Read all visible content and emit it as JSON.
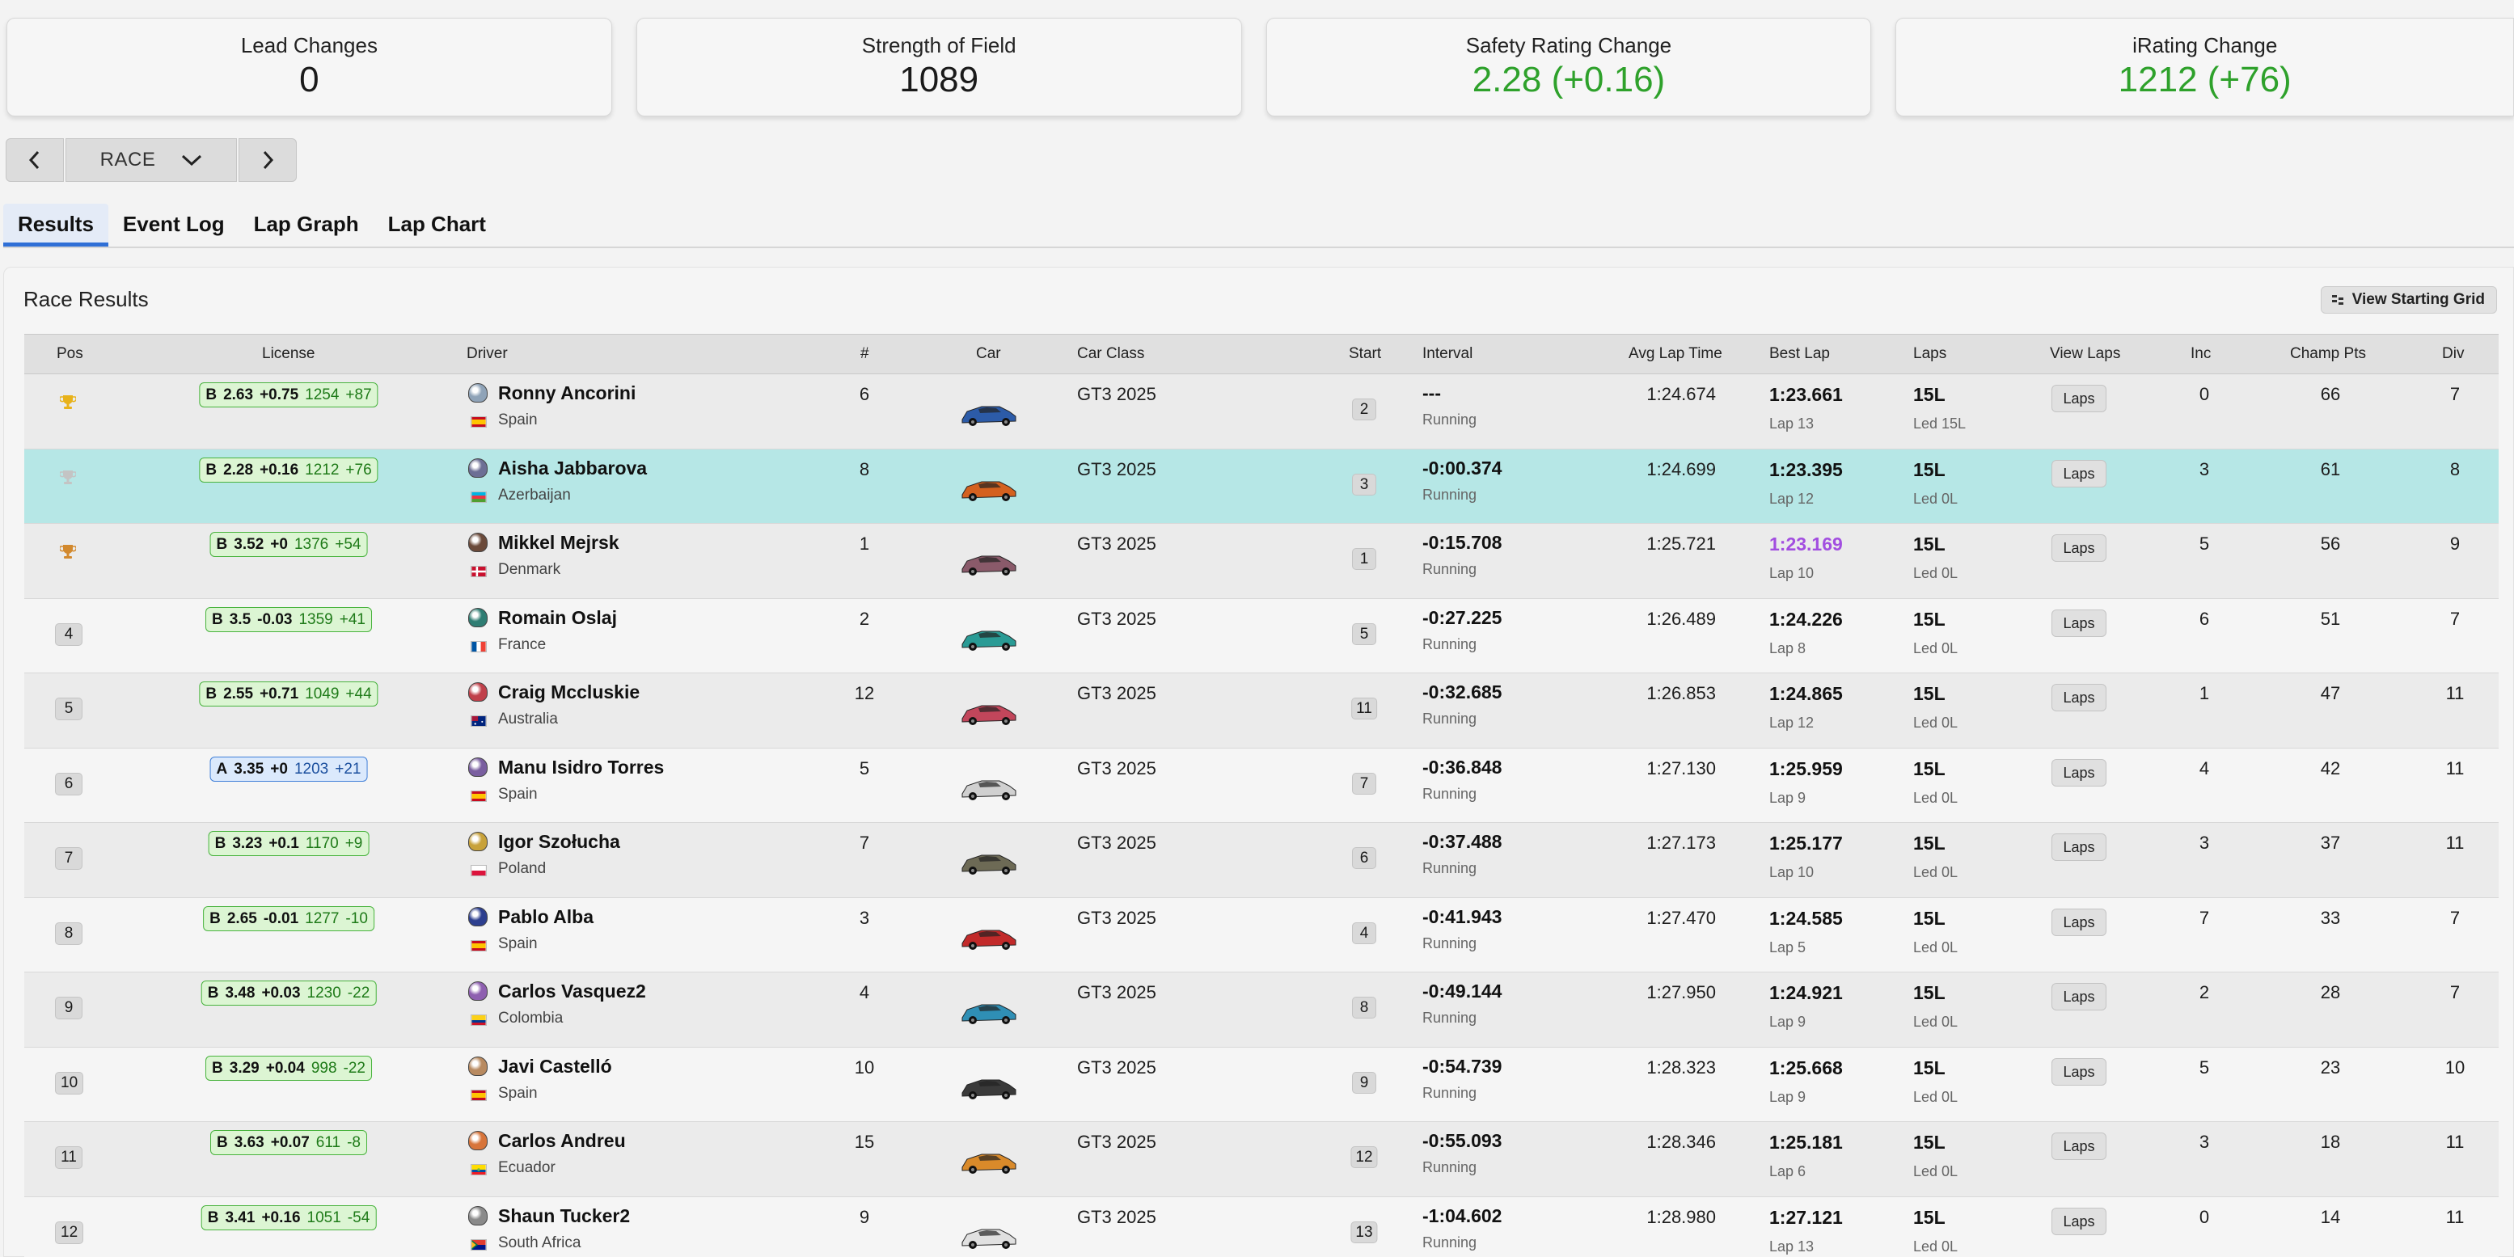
{
  "stats": [
    {
      "label": "Lead Changes",
      "value": "0",
      "color": "#1a1a1a"
    },
    {
      "label": "Strength of Field",
      "value": "1089",
      "color": "#1a1a1a"
    },
    {
      "label": "Safety Rating Change",
      "value": "2.28 (+0.16)",
      "color": "#2ea12b"
    },
    {
      "label": "iRating Change",
      "value": "1212 (+76)",
      "color": "#2ea12b"
    }
  ],
  "session": {
    "selected": "RACE"
  },
  "tabs": [
    "Results",
    "Event Log",
    "Lap Graph",
    "Lap Chart"
  ],
  "results": {
    "title": "Race Results",
    "grid_button": "View Starting Grid",
    "columns": {
      "pos": "Pos",
      "license": "License",
      "driver": "Driver",
      "num": "#",
      "car": "Car",
      "car_class": "Car Class",
      "start": "Start",
      "interval": "Interval",
      "avg_lap": "Avg Lap Time",
      "best_lap": "Best Lap",
      "laps": "Laps",
      "view_laps": "View Laps",
      "inc": "Inc",
      "champ_pts": "Champ Pts",
      "div": "Div"
    },
    "laps_button": "Laps",
    "rows": [
      {
        "pos": "1",
        "trophy": "gold",
        "lic_class": "B",
        "lic_type": "b",
        "sr": "2.63",
        "sr_delta": "+0.75",
        "ir": "1254",
        "ir_delta": "+87",
        "driver": "Ronny Ancorini",
        "country": "Spain",
        "flag": "es",
        "helmet": "#8fa3b8",
        "num": "6",
        "car_color": "#2c5ba8",
        "car_class": "GT3 2025",
        "start": "2",
        "interval": "---",
        "status": "Running",
        "avg": "1:24.674",
        "best": "1:23.661",
        "best_purple": false,
        "best_lap": "Lap 13",
        "laps": "15L",
        "led": "Led 15L",
        "inc": "0",
        "pts": "66",
        "div": "7",
        "highlight": false
      },
      {
        "pos": "2",
        "trophy": "silver",
        "lic_class": "B",
        "lic_type": "b",
        "sr": "2.28",
        "sr_delta": "+0.16",
        "ir": "1212",
        "ir_delta": "+76",
        "driver": "Aisha Jabbarova",
        "country": "Azerbaijan",
        "flag": "az",
        "helmet": "#6d6f95",
        "num": "8",
        "car_color": "#d4611f",
        "car_class": "GT3 2025",
        "start": "3",
        "interval": "-0:00.374",
        "status": "Running",
        "avg": "1:24.699",
        "best": "1:23.395",
        "best_purple": false,
        "best_lap": "Lap 12",
        "laps": "15L",
        "led": "Led 0L",
        "inc": "3",
        "pts": "61",
        "div": "8",
        "highlight": true
      },
      {
        "pos": "3",
        "trophy": "bronze",
        "lic_class": "B",
        "lic_type": "b",
        "sr": "3.52",
        "sr_delta": "+0",
        "ir": "1376",
        "ir_delta": "+54",
        "driver": "Mikkel Mejrsk",
        "country": "Denmark",
        "flag": "dk",
        "helmet": "#6b4a3a",
        "num": "1",
        "car_color": "#8a5a6a",
        "car_class": "GT3 2025",
        "start": "1",
        "interval": "-0:15.708",
        "status": "Running",
        "avg": "1:25.721",
        "best": "1:23.169",
        "best_purple": true,
        "best_lap": "Lap 10",
        "laps": "15L",
        "led": "Led 0L",
        "inc": "5",
        "pts": "56",
        "div": "9",
        "highlight": false
      },
      {
        "pos": "4",
        "trophy": "",
        "lic_class": "B",
        "lic_type": "b",
        "sr": "3.5",
        "sr_delta": "-0.03",
        "ir": "1359",
        "ir_delta": "+41",
        "driver": "Romain Oslaj",
        "country": "France",
        "flag": "fr",
        "helmet": "#2f7d73",
        "num": "2",
        "car_color": "#2a9b95",
        "car_class": "GT3 2025",
        "start": "5",
        "interval": "-0:27.225",
        "status": "Running",
        "avg": "1:26.489",
        "best": "1:24.226",
        "best_purple": false,
        "best_lap": "Lap 8",
        "laps": "15L",
        "led": "Led 0L",
        "inc": "6",
        "pts": "51",
        "div": "7",
        "highlight": false
      },
      {
        "pos": "5",
        "trophy": "",
        "lic_class": "B",
        "lic_type": "b",
        "sr": "2.55",
        "sr_delta": "+0.71",
        "ir": "1049",
        "ir_delta": "+44",
        "driver": "Craig Mccluskie",
        "country": "Australia",
        "flag": "au",
        "helmet": "#c0404a",
        "num": "12",
        "car_color": "#c2465b",
        "car_class": "GT3 2025",
        "start": "11",
        "interval": "-0:32.685",
        "status": "Running",
        "avg": "1:26.853",
        "best": "1:24.865",
        "best_purple": false,
        "best_lap": "Lap 12",
        "laps": "15L",
        "led": "Led 0L",
        "inc": "1",
        "pts": "47",
        "div": "11",
        "highlight": false
      },
      {
        "pos": "6",
        "trophy": "",
        "lic_class": "A",
        "lic_type": "a",
        "sr": "3.35",
        "sr_delta": "+0",
        "ir": "1203",
        "ir_delta": "+21",
        "driver": "Manu Isidro Torres",
        "country": "Spain",
        "flag": "es",
        "helmet": "#7a5fa0",
        "num": "5",
        "car_color": "#d0d0d0",
        "car_class": "GT3 2025",
        "start": "7",
        "interval": "-0:36.848",
        "status": "Running",
        "avg": "1:27.130",
        "best": "1:25.959",
        "best_purple": false,
        "best_lap": "Lap 9",
        "laps": "15L",
        "led": "Led 0L",
        "inc": "4",
        "pts": "42",
        "div": "11",
        "highlight": false
      },
      {
        "pos": "7",
        "trophy": "",
        "lic_class": "B",
        "lic_type": "b",
        "sr": "3.23",
        "sr_delta": "+0.1",
        "ir": "1170",
        "ir_delta": "+9",
        "driver": "Igor Szołucha",
        "country": "Poland",
        "flag": "pl",
        "helmet": "#c8a23a",
        "num": "7",
        "car_color": "#6d6a55",
        "car_class": "GT3 2025",
        "start": "6",
        "interval": "-0:37.488",
        "status": "Running",
        "avg": "1:27.173",
        "best": "1:25.177",
        "best_purple": false,
        "best_lap": "Lap 10",
        "laps": "15L",
        "led": "Led 0L",
        "inc": "3",
        "pts": "37",
        "div": "11",
        "highlight": false
      },
      {
        "pos": "8",
        "trophy": "",
        "lic_class": "B",
        "lic_type": "b",
        "sr": "2.65",
        "sr_delta": "-0.01",
        "ir": "1277",
        "ir_delta": "-10",
        "driver": "Pablo Alba",
        "country": "Spain",
        "flag": "es",
        "helmet": "#2d3f8f",
        "num": "3",
        "car_color": "#c22a2a",
        "car_class": "GT3 2025",
        "start": "4",
        "interval": "-0:41.943",
        "status": "Running",
        "avg": "1:27.470",
        "best": "1:24.585",
        "best_purple": false,
        "best_lap": "Lap 5",
        "laps": "15L",
        "led": "Led 0L",
        "inc": "7",
        "pts": "33",
        "div": "7",
        "highlight": false
      },
      {
        "pos": "9",
        "trophy": "",
        "lic_class": "B",
        "lic_type": "b",
        "sr": "3.48",
        "sr_delta": "+0.03",
        "ir": "1230",
        "ir_delta": "-22",
        "driver": "Carlos Vasquez2",
        "country": "Colombia",
        "flag": "co",
        "helmet": "#8e5fb0",
        "num": "4",
        "car_color": "#2f8fb5",
        "car_class": "GT3 2025",
        "start": "8",
        "interval": "-0:49.144",
        "status": "Running",
        "avg": "1:27.950",
        "best": "1:24.921",
        "best_purple": false,
        "best_lap": "Lap 9",
        "laps": "15L",
        "led": "Led 0L",
        "inc": "2",
        "pts": "28",
        "div": "7",
        "highlight": false
      },
      {
        "pos": "10",
        "trophy": "",
        "lic_class": "B",
        "lic_type": "b",
        "sr": "3.29",
        "sr_delta": "+0.04",
        "ir": "998",
        "ir_delta": "-22",
        "driver": "Javi Castelló",
        "country": "Spain",
        "flag": "es",
        "helmet": "#b88a60",
        "num": "10",
        "car_color": "#3a3a3a",
        "car_class": "GT3 2025",
        "start": "9",
        "interval": "-0:54.739",
        "status": "Running",
        "avg": "1:28.323",
        "best": "1:25.668",
        "best_purple": false,
        "best_lap": "Lap 9",
        "laps": "15L",
        "led": "Led 0L",
        "inc": "5",
        "pts": "23",
        "div": "10",
        "highlight": false
      },
      {
        "pos": "11",
        "trophy": "",
        "lic_class": "B",
        "lic_type": "b",
        "sr": "3.63",
        "sr_delta": "+0.07",
        "ir": "611",
        "ir_delta": "-8",
        "driver": "Carlos Andreu",
        "country": "Ecuador",
        "flag": "ec",
        "helmet": "#d7743a",
        "num": "15",
        "car_color": "#d98a2a",
        "car_class": "GT3 2025",
        "start": "12",
        "interval": "-0:55.093",
        "status": "Running",
        "avg": "1:28.346",
        "best": "1:25.181",
        "best_purple": false,
        "best_lap": "Lap 6",
        "laps": "15L",
        "led": "Led 0L",
        "inc": "3",
        "pts": "18",
        "div": "11",
        "highlight": false
      },
      {
        "pos": "12",
        "trophy": "",
        "lic_class": "B",
        "lic_type": "b",
        "sr": "3.41",
        "sr_delta": "+0.16",
        "ir": "1051",
        "ir_delta": "-54",
        "driver": "Shaun Tucker2",
        "country": "South Africa",
        "flag": "za",
        "helmet": "#8a8a8a",
        "num": "9",
        "car_color": "#e0e0e0",
        "car_class": "GT3 2025",
        "start": "13",
        "interval": "-1:04.602",
        "status": "Running",
        "avg": "1:28.980",
        "best": "1:27.121",
        "best_purple": false,
        "best_lap": "Lap 13",
        "laps": "15L",
        "led": "Led 0L",
        "inc": "0",
        "pts": "14",
        "div": "11",
        "highlight": false
      }
    ]
  }
}
